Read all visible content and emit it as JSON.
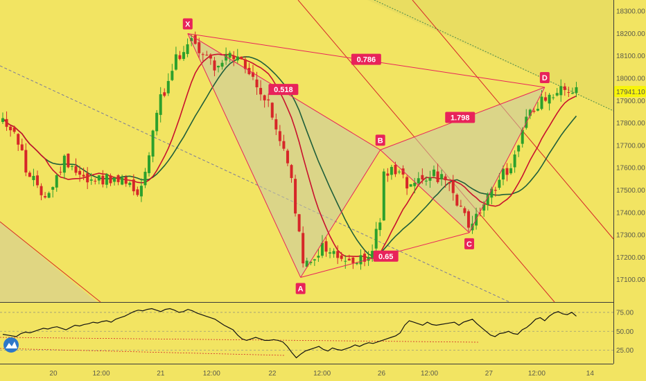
{
  "chart_data": {
    "type": "candlestick",
    "price_axis": {
      "range": [
        17000,
        18350
      ],
      "ticks": [
        "18300.00",
        "18200.00",
        "18100.00",
        "18000.00",
        "17900.00",
        "17800.00",
        "17700.00",
        "17600.00",
        "17500.00",
        "17400.00",
        "17300.00",
        "17200.00",
        "17100.00"
      ],
      "last_price": "17941.10"
    },
    "time_axis": {
      "ticks": [
        "20",
        "12:00",
        "21",
        "12:00",
        "22",
        "12:00",
        "26",
        "12:00",
        "27",
        "12:00",
        "14"
      ]
    },
    "oscillator": {
      "ticks": [
        "75.00",
        "50.00",
        "25.00"
      ],
      "range": [
        10,
        85
      ],
      "values": [
        46,
        45,
        44,
        43,
        47,
        49,
        48,
        50,
        52,
        54,
        53,
        55,
        56,
        54,
        52,
        55,
        58,
        57,
        59,
        60,
        62,
        61,
        63,
        64,
        62,
        66,
        68,
        70,
        73,
        76,
        78,
        77,
        79,
        80,
        78,
        76,
        79,
        80,
        78,
        75,
        76,
        79,
        77,
        74,
        72,
        70,
        68,
        66,
        62,
        58,
        55,
        52,
        45,
        40,
        38,
        40,
        42,
        40,
        38,
        38,
        39,
        38,
        36,
        30,
        22,
        15,
        20,
        24,
        26,
        28,
        30,
        26,
        24,
        28,
        26,
        25,
        27,
        29,
        32,
        30,
        33,
        35,
        34,
        36,
        38,
        40,
        42,
        44,
        48,
        58,
        64,
        62,
        60,
        58,
        62,
        59,
        58,
        59,
        60,
        61,
        62,
        58,
        62,
        64,
        66,
        60,
        55,
        50,
        45,
        43,
        47,
        48,
        50,
        47,
        46,
        52,
        55,
        60,
        66,
        68,
        64,
        70,
        74,
        76,
        73,
        72,
        75,
        70
      ]
    },
    "price_min": 17100,
    "price_max": 18200,
    "pattern": {
      "points": [
        {
          "name": "X",
          "t": 0.306,
          "price": 18200
        },
        {
          "name": "A",
          "t": 0.49,
          "price": 17110
        },
        {
          "name": "B",
          "t": 0.62,
          "price": 17680
        },
        {
          "name": "C",
          "t": 0.765,
          "price": 17310
        },
        {
          "name": "D",
          "t": 0.888,
          "price": 17960
        }
      ],
      "ratios": [
        {
          "label": "0.786",
          "t": 0.597,
          "price": 18085
        },
        {
          "label": "0.518",
          "t": 0.462,
          "price": 17950
        },
        {
          "label": "1.798",
          "t": 0.75,
          "price": 17825
        },
        {
          "label": "0.65",
          "t": 0.629,
          "price": 17205
        }
      ]
    },
    "colors": {
      "up": "#2ca02c",
      "down": "#d62728",
      "ma_fast": "#c8102e",
      "ma_slow": "#1f5e3a",
      "pattern": "#e8235a"
    }
  }
}
